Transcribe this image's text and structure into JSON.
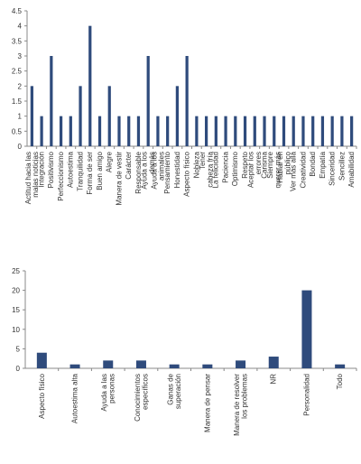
{
  "chart_data": [
    {
      "type": "bar",
      "color": "#2f4b7c",
      "categories": [
        "Actitud hacia las malas noticias",
        "Integración",
        "Positivismo",
        "Perfeccionismo",
        "Autoestima",
        "Tranquilidad",
        "Forma de ser",
        "Buen amigo",
        "Alegre",
        "Manera de vestir",
        "Carácter",
        "Responsable",
        "Ayuda a los demás",
        "Ayuda a los animales",
        "Pensamiento",
        "Honestidad",
        "Aspecto físico",
        "Nobleza",
        "Tener cabeza fría",
        "La felicidad",
        "Paciencia",
        "Optimismo",
        "Respeto",
        "Aceptar los errores",
        "Carisma",
        "Siempre querer más",
        "Hablar en público",
        "Ver más allá",
        "Creatividad",
        "Bondad",
        "Empatía",
        "Sinceridad",
        "Sencillez",
        "Amabilidad"
      ],
      "values": [
        2,
        1,
        3,
        1,
        1,
        2,
        4,
        1,
        2,
        1,
        1,
        1,
        3,
        1,
        1,
        2,
        3,
        1,
        1,
        1,
        1,
        1,
        1,
        1,
        1,
        1,
        1,
        1,
        1,
        1,
        1,
        1,
        1,
        1
      ],
      "ylim": [
        0,
        4.5
      ],
      "yticks": [
        0,
        0.5,
        1,
        1.5,
        2,
        2.5,
        3,
        3.5,
        4,
        4.5
      ]
    },
    {
      "type": "bar",
      "color": "#2f4b7c",
      "categories": [
        "Aspecto físico",
        "Autoestima alta",
        "Ayuda a las personas",
        "Conocimientos específicos",
        "Ganas de superación",
        "Manera de pensar",
        "Manera de resolver los problemas",
        "NR",
        "Personalidad",
        "Todo"
      ],
      "values": [
        4,
        1,
        2,
        2,
        1,
        1,
        2,
        3,
        20,
        1
      ],
      "ylim": [
        0,
        25
      ],
      "yticks": [
        0,
        5,
        10,
        15,
        20,
        25
      ]
    }
  ]
}
